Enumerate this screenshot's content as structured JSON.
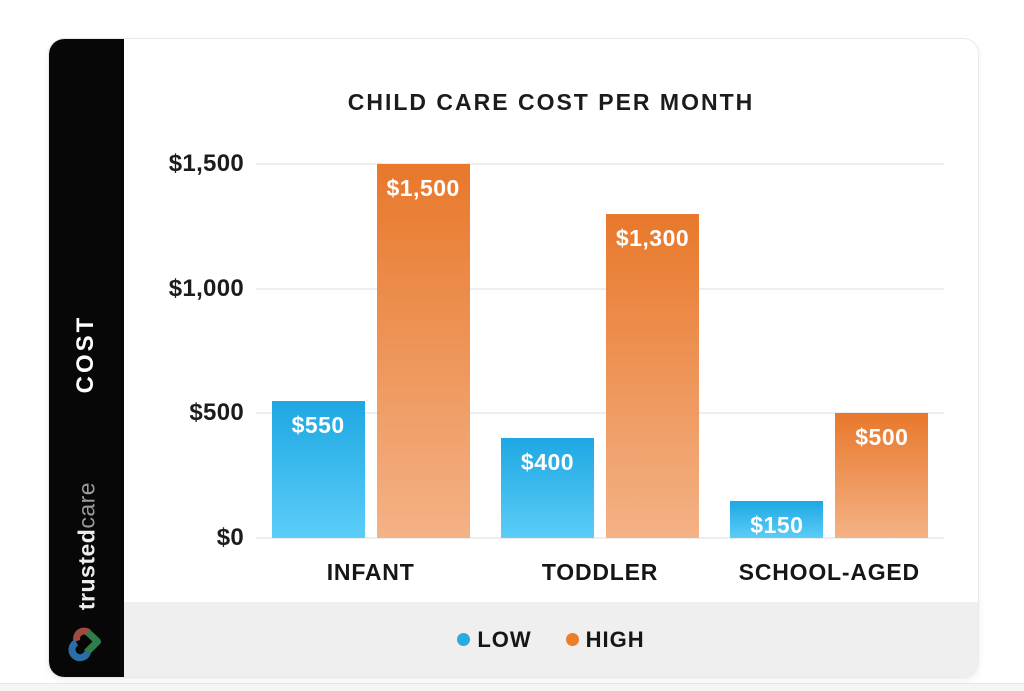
{
  "sidebar": {
    "cost_label": "COST",
    "brand_bold": "trusted",
    "brand_light": "care",
    "logo_icon": "heart-ribbon-logo",
    "logo_colors": {
      "red": "#a14a40",
      "green": "#2f7d4a",
      "blue": "#2a6da8"
    }
  },
  "chart_data": {
    "type": "bar",
    "title": "CHILD CARE COST PER MONTH",
    "categories": [
      "INFANT",
      "TODDLER",
      "SCHOOL-AGED"
    ],
    "series": [
      {
        "name": "LOW",
        "values": [
          550,
          400,
          150
        ],
        "labels": [
          "$550",
          "$400",
          "$150"
        ],
        "color_top": "#1ea7e3",
        "color_bottom": "#5bcdf7",
        "legend_color": "#29abe2"
      },
      {
        "name": "HIGH",
        "values": [
          1500,
          1300,
          500
        ],
        "labels": [
          "$1,500",
          "$1,300",
          "$500"
        ],
        "color_top": "#e8782b",
        "color_bottom": "#f4b286",
        "legend_color": "#ec7d2b"
      }
    ],
    "ylabel": "COST",
    "xlabel": "",
    "ylim": [
      0,
      1500
    ],
    "yticks": [
      {
        "value": 1500,
        "label": "$1,500"
      },
      {
        "value": 1000,
        "label": "$1,000"
      },
      {
        "value": 500,
        "label": "$500"
      },
      {
        "value": 0,
        "label": "$0"
      }
    ],
    "grid": true,
    "legend_position": "bottom"
  },
  "colors": {
    "text": "#1c1c1c",
    "gridline": "#eeeeee",
    "sidebar_bg": "#070707",
    "legend_strip_bg": "#efefef",
    "card_border": "#e9e9e9"
  }
}
